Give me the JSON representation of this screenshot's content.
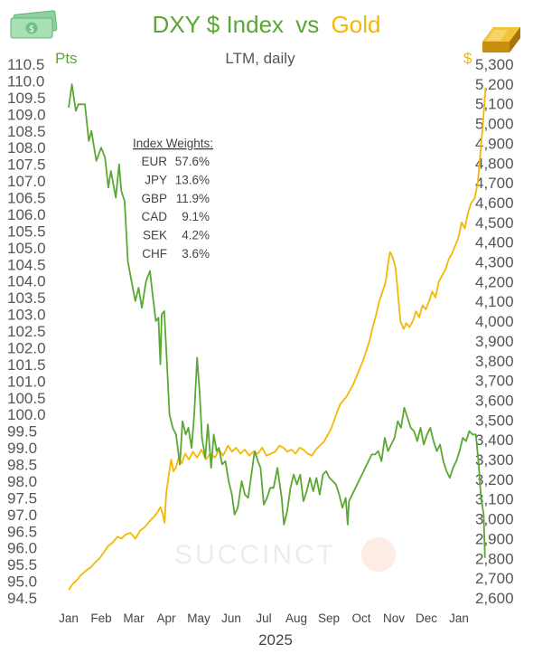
{
  "chart_data": {
    "type": "line",
    "title": {
      "part1": "DXY $ Index",
      "part2": "vs",
      "part3": "Gold"
    },
    "subtitle": "LTM, daily",
    "xlabel": "2025",
    "x_ticks": [
      "Jan",
      "Feb",
      "Mar",
      "Apr",
      "May",
      "Jun",
      "Jul",
      "Aug",
      "Sep",
      "Oct",
      "Nov",
      "Dec",
      "Jan"
    ],
    "y_left": {
      "unit": "Pts",
      "range": [
        94.5,
        110.5
      ],
      "ticks": [
        "94.5",
        "95.0",
        "95.5",
        "96.0",
        "96.5",
        "97.0",
        "97.5",
        "98.0",
        "98.5",
        "99.0",
        "99.5",
        "100.0",
        "100.5",
        "101.0",
        "101.5",
        "102.0",
        "102.5",
        "103.0",
        "103.5",
        "104.0",
        "104.5",
        "105.0",
        "105.5",
        "106.0",
        "106.5",
        "107.0",
        "107.5",
        "108.0",
        "108.5",
        "109.0",
        "109.5",
        "110.0",
        "110.5"
      ]
    },
    "y_right": {
      "unit": "$",
      "range": [
        2600,
        5300
      ],
      "ticks": [
        "2,600",
        "2,700",
        "2,800",
        "2,900",
        "3,000",
        "3,100",
        "3,200",
        "3,300",
        "3,400",
        "3,500",
        "3,600",
        "3,700",
        "3,800",
        "3,900",
        "4,000",
        "4,100",
        "4,200",
        "4,300",
        "4,400",
        "4,500",
        "4,600",
        "4,700",
        "4,800",
        "4,900",
        "5,000",
        "5,100",
        "5,200",
        "5,300"
      ]
    },
    "index_weights": {
      "heading": "Index Weights:",
      "items": [
        {
          "ccy": "EUR",
          "pct": "57.6%"
        },
        {
          "ccy": "JPY",
          "pct": "13.6%"
        },
        {
          "ccy": "GBP",
          "pct": "11.9%"
        },
        {
          "ccy": "CAD",
          "pct": "9.1%"
        },
        {
          "ccy": "SEK",
          "pct": "4.2%"
        },
        {
          "ccy": "CHF",
          "pct": "3.6%"
        }
      ]
    },
    "watermark": "SUCCINCT",
    "colors": {
      "dxy": "#5aa832",
      "gold": "#f5b800",
      "text": "#555555"
    },
    "grid": false,
    "legend": "none",
    "series": [
      {
        "name": "DXY $ Index",
        "axis": "left",
        "points": [
          [
            0.0,
            109.2
          ],
          [
            0.1,
            109.9
          ],
          [
            0.22,
            109.1
          ],
          [
            0.3,
            109.3
          ],
          [
            0.5,
            109.3
          ],
          [
            0.62,
            108.2
          ],
          [
            0.7,
            108.5
          ],
          [
            0.85,
            107.6
          ],
          [
            1.0,
            108.0
          ],
          [
            1.12,
            107.7
          ],
          [
            1.22,
            106.8
          ],
          [
            1.3,
            107.3
          ],
          [
            1.45,
            106.5
          ],
          [
            1.55,
            107.5
          ],
          [
            1.62,
            106.7
          ],
          [
            1.72,
            106.4
          ],
          [
            1.82,
            104.6
          ],
          [
            1.95,
            103.9
          ],
          [
            2.05,
            103.4
          ],
          [
            2.15,
            103.8
          ],
          [
            2.25,
            103.2
          ],
          [
            2.38,
            104.0
          ],
          [
            2.5,
            104.3
          ],
          [
            2.58,
            103.6
          ],
          [
            2.68,
            102.8
          ],
          [
            2.76,
            102.9
          ],
          [
            2.82,
            101.5
          ],
          [
            2.86,
            103.0
          ],
          [
            2.94,
            103.1
          ],
          [
            3.02,
            101.6
          ],
          [
            3.1,
            100.0
          ],
          [
            3.2,
            99.6
          ],
          [
            3.3,
            99.4
          ],
          [
            3.42,
            98.5
          ],
          [
            3.5,
            99.8
          ],
          [
            3.6,
            99.4
          ],
          [
            3.68,
            99.6
          ],
          [
            3.78,
            99.0
          ],
          [
            3.86,
            100.0
          ],
          [
            3.95,
            101.7
          ],
          [
            4.03,
            100.6
          ],
          [
            4.1,
            99.3
          ],
          [
            4.2,
            98.7
          ],
          [
            4.28,
            99.7
          ],
          [
            4.38,
            98.4
          ],
          [
            4.46,
            99.4
          ],
          [
            4.55,
            98.9
          ],
          [
            4.62,
            99.0
          ],
          [
            4.72,
            98.5
          ],
          [
            4.82,
            98.6
          ],
          [
            4.92,
            98.0
          ],
          [
            5.02,
            97.6
          ],
          [
            5.1,
            97.0
          ],
          [
            5.2,
            97.2
          ],
          [
            5.32,
            98.0
          ],
          [
            5.42,
            97.6
          ],
          [
            5.52,
            97.5
          ],
          [
            5.62,
            98.2
          ],
          [
            5.72,
            98.9
          ],
          [
            5.82,
            98.6
          ],
          [
            5.9,
            98.4
          ],
          [
            6.0,
            97.3
          ],
          [
            6.1,
            97.5
          ],
          [
            6.2,
            97.8
          ],
          [
            6.3,
            97.8
          ],
          [
            6.42,
            98.4
          ],
          [
            6.55,
            97.5
          ],
          [
            6.62,
            96.7
          ],
          [
            6.72,
            97.1
          ],
          [
            6.82,
            97.8
          ],
          [
            6.92,
            98.2
          ],
          [
            7.02,
            97.9
          ],
          [
            7.12,
            98.2
          ],
          [
            7.22,
            97.4
          ],
          [
            7.32,
            97.7
          ],
          [
            7.42,
            98.1
          ],
          [
            7.52,
            97.7
          ],
          [
            7.62,
            98.1
          ],
          [
            7.72,
            97.6
          ],
          [
            7.82,
            98.2
          ],
          [
            7.92,
            98.3
          ],
          [
            8.02,
            98.1
          ],
          [
            8.12,
            98.0
          ],
          [
            8.22,
            97.9
          ],
          [
            8.32,
            97.6
          ],
          [
            8.42,
            97.2
          ],
          [
            8.52,
            97.5
          ],
          [
            8.58,
            96.7
          ],
          [
            8.62,
            97.4
          ],
          [
            8.72,
            97.6
          ],
          [
            8.82,
            97.8
          ],
          [
            8.92,
            98.0
          ],
          [
            9.02,
            98.2
          ],
          [
            9.12,
            98.4
          ],
          [
            9.22,
            98.6
          ],
          [
            9.32,
            98.8
          ],
          [
            9.42,
            98.8
          ],
          [
            9.52,
            98.9
          ],
          [
            9.62,
            98.6
          ],
          [
            9.72,
            99.3
          ],
          [
            9.82,
            98.9
          ],
          [
            9.92,
            99.1
          ],
          [
            10.02,
            99.3
          ],
          [
            10.12,
            99.8
          ],
          [
            10.22,
            99.6
          ],
          [
            10.32,
            100.2
          ],
          [
            10.42,
            99.9
          ],
          [
            10.52,
            99.6
          ],
          [
            10.62,
            99.5
          ],
          [
            10.72,
            99.2
          ],
          [
            10.82,
            99.6
          ],
          [
            10.92,
            99.1
          ],
          [
            11.02,
            99.4
          ],
          [
            11.12,
            99.6
          ],
          [
            11.22,
            99.2
          ],
          [
            11.32,
            98.9
          ],
          [
            11.42,
            99.1
          ],
          [
            11.52,
            98.6
          ],
          [
            11.62,
            98.3
          ],
          [
            11.72,
            98.1
          ],
          [
            11.82,
            98.4
          ],
          [
            11.92,
            98.6
          ],
          [
            12.02,
            98.9
          ],
          [
            12.12,
            99.3
          ],
          [
            12.22,
            99.2
          ],
          [
            12.32,
            99.5
          ],
          [
            12.42,
            99.4
          ],
          [
            12.52,
            99.4
          ],
          [
            12.6,
            98.6
          ],
          [
            12.68,
            97.5
          ],
          [
            12.76,
            97.0
          ],
          [
            12.8,
            95.7
          ]
        ]
      },
      {
        "name": "Gold",
        "axis": "right",
        "points": [
          [
            0.0,
            2640
          ],
          [
            0.12,
            2670
          ],
          [
            0.25,
            2690
          ],
          [
            0.4,
            2720
          ],
          [
            0.55,
            2740
          ],
          [
            0.68,
            2755
          ],
          [
            0.82,
            2780
          ],
          [
            0.95,
            2800
          ],
          [
            1.08,
            2830
          ],
          [
            1.2,
            2860
          ],
          [
            1.35,
            2880
          ],
          [
            1.5,
            2910
          ],
          [
            1.62,
            2900
          ],
          [
            1.75,
            2920
          ],
          [
            1.9,
            2930
          ],
          [
            2.05,
            2900
          ],
          [
            2.2,
            2940
          ],
          [
            2.35,
            2960
          ],
          [
            2.5,
            2990
          ],
          [
            2.62,
            3010
          ],
          [
            2.72,
            3030
          ],
          [
            2.82,
            3060
          ],
          [
            2.9,
            3020
          ],
          [
            2.95,
            2980
          ],
          [
            3.0,
            3130
          ],
          [
            3.08,
            3220
          ],
          [
            3.15,
            3300
          ],
          [
            3.22,
            3240
          ],
          [
            3.3,
            3260
          ],
          [
            3.38,
            3310
          ],
          [
            3.48,
            3280
          ],
          [
            3.58,
            3330
          ],
          [
            3.7,
            3300
          ],
          [
            3.82,
            3340
          ],
          [
            3.95,
            3310
          ],
          [
            4.08,
            3350
          ],
          [
            4.22,
            3300
          ],
          [
            4.35,
            3330
          ],
          [
            4.5,
            3310
          ],
          [
            4.62,
            3350
          ],
          [
            4.75,
            3320
          ],
          [
            4.9,
            3370
          ],
          [
            5.02,
            3340
          ],
          [
            5.15,
            3360
          ],
          [
            5.28,
            3330
          ],
          [
            5.42,
            3350
          ],
          [
            5.55,
            3320
          ],
          [
            5.68,
            3340
          ],
          [
            5.82,
            3330
          ],
          [
            5.95,
            3360
          ],
          [
            6.08,
            3320
          ],
          [
            6.22,
            3330
          ],
          [
            6.35,
            3340
          ],
          [
            6.48,
            3370
          ],
          [
            6.6,
            3360
          ],
          [
            6.72,
            3340
          ],
          [
            6.85,
            3350
          ],
          [
            6.98,
            3330
          ],
          [
            7.1,
            3360
          ],
          [
            7.22,
            3350
          ],
          [
            7.35,
            3330
          ],
          [
            7.48,
            3320
          ],
          [
            7.6,
            3350
          ],
          [
            7.72,
            3370
          ],
          [
            7.85,
            3390
          ],
          [
            7.95,
            3420
          ],
          [
            8.05,
            3450
          ],
          [
            8.15,
            3490
          ],
          [
            8.25,
            3540
          ],
          [
            8.35,
            3580
          ],
          [
            8.45,
            3600
          ],
          [
            8.55,
            3620
          ],
          [
            8.65,
            3650
          ],
          [
            8.75,
            3680
          ],
          [
            8.85,
            3720
          ],
          [
            8.95,
            3760
          ],
          [
            9.05,
            3800
          ],
          [
            9.15,
            3850
          ],
          [
            9.25,
            3900
          ],
          [
            9.35,
            3970
          ],
          [
            9.45,
            4030
          ],
          [
            9.55,
            4100
          ],
          [
            9.65,
            4150
          ],
          [
            9.75,
            4200
          ],
          [
            9.82,
            4290
          ],
          [
            9.88,
            4350
          ],
          [
            9.95,
            4330
          ],
          [
            10.05,
            4270
          ],
          [
            10.12,
            4150
          ],
          [
            10.2,
            4000
          ],
          [
            10.3,
            3960
          ],
          [
            10.38,
            3990
          ],
          [
            10.48,
            3970
          ],
          [
            10.58,
            4000
          ],
          [
            10.68,
            4050
          ],
          [
            10.78,
            4020
          ],
          [
            10.88,
            4080
          ],
          [
            10.98,
            4060
          ],
          [
            11.08,
            4100
          ],
          [
            11.18,
            4150
          ],
          [
            11.28,
            4120
          ],
          [
            11.38,
            4200
          ],
          [
            11.48,
            4230
          ],
          [
            11.58,
            4260
          ],
          [
            11.68,
            4310
          ],
          [
            11.78,
            4340
          ],
          [
            11.88,
            4380
          ],
          [
            11.98,
            4420
          ],
          [
            12.08,
            4500
          ],
          [
            12.18,
            4470
          ],
          [
            12.28,
            4550
          ],
          [
            12.38,
            4600
          ],
          [
            12.48,
            4620
          ],
          [
            12.58,
            4700
          ],
          [
            12.66,
            4850
          ],
          [
            12.74,
            5000
          ],
          [
            12.82,
            5180
          ]
        ]
      }
    ]
  }
}
